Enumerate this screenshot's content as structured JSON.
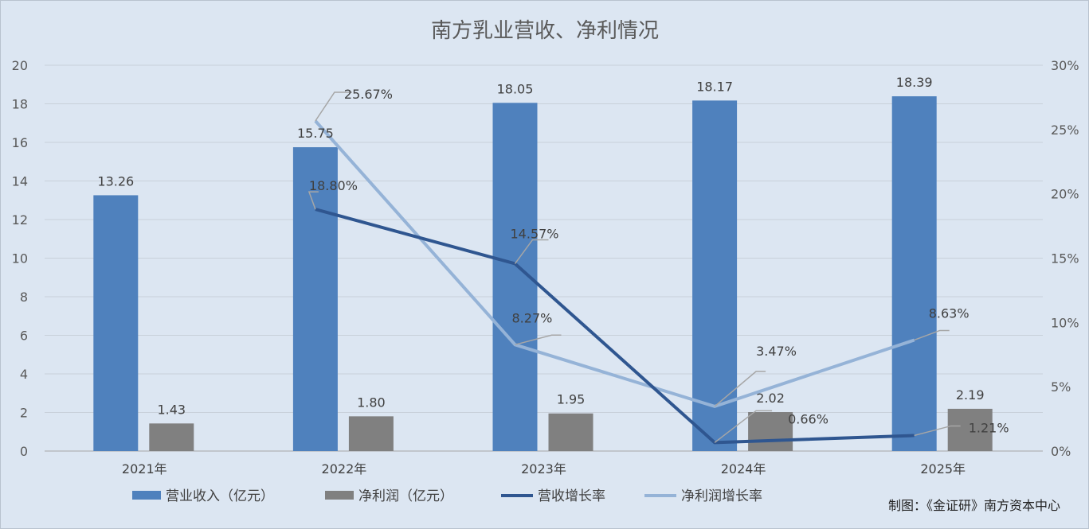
{
  "chart_data": {
    "type": "bar",
    "title": "南方乳业营收、净利情况",
    "categories": [
      "2021年",
      "2022年",
      "2023年",
      "2024年",
      "2025年"
    ],
    "y_left": {
      "min": 0,
      "max": 20,
      "step": 2,
      "ticks": [
        "0",
        "2",
        "4",
        "6",
        "8",
        "10",
        "12",
        "14",
        "16",
        "18",
        "20"
      ]
    },
    "y_right": {
      "min": 0,
      "max": 30,
      "step": 5,
      "ticks": [
        "0%",
        "5%",
        "10%",
        "15%",
        "20%",
        "25%",
        "30%"
      ]
    },
    "grid": true,
    "legend_position": "bottom",
    "series": [
      {
        "name": "营业收入（亿元）",
        "kind": "bar",
        "axis": "left",
        "color": "#4f81bd",
        "values": [
          13.26,
          15.75,
          18.05,
          18.17,
          18.39
        ],
        "labels": [
          "13.26",
          "15.75",
          "18.05",
          "18.17",
          "18.39"
        ]
      },
      {
        "name": "净利润（亿元）",
        "kind": "bar",
        "axis": "left",
        "color": "#808080",
        "values": [
          1.43,
          1.8,
          1.95,
          2.02,
          2.19
        ],
        "labels": [
          "1.43",
          "1.80",
          "1.95",
          "2.02",
          "2.19"
        ]
      },
      {
        "name": "营收增长率",
        "kind": "line",
        "axis": "right",
        "color": "#2f5690",
        "values": [
          null,
          18.8,
          14.57,
          0.66,
          1.21
        ],
        "labels": [
          "",
          "18.80%",
          "14.57%",
          "0.66%",
          "1.21%"
        ]
      },
      {
        "name": "净利润增长率",
        "kind": "line",
        "axis": "right",
        "color": "#95b3d7",
        "values": [
          null,
          25.67,
          8.27,
          3.47,
          8.63
        ],
        "labels": [
          "",
          "25.67%",
          "8.27%",
          "3.47%",
          "8.63%"
        ]
      }
    ],
    "credit": "制图：《金证研》南方资本中心"
  }
}
